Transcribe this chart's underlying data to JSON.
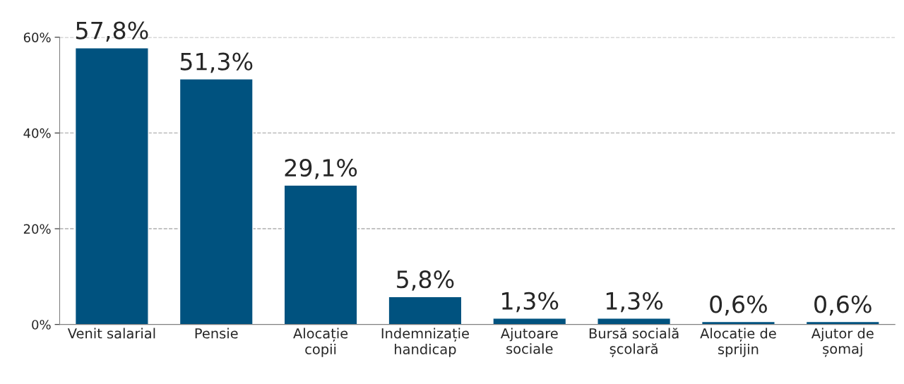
{
  "chart_data": {
    "type": "bar",
    "categories": [
      "Venit salarial",
      "Pensie",
      "Alocație\ncopii",
      "Indemnizație\nhandicap",
      "Ajutoare\nsociale",
      "Bursă socială\nșcolară",
      "Alocație de\nsprijin",
      "Ajutor de\nșomaj"
    ],
    "values": [
      57.8,
      51.3,
      29.1,
      5.8,
      1.3,
      1.3,
      0.6,
      0.6
    ],
    "value_labels": [
      "57,8%",
      "51,3%",
      "29,1%",
      "5,8%",
      "1,3%",
      "1,3%",
      "0,6%",
      "0,6%"
    ],
    "color": "#00527f",
    "ylim": [
      0,
      60
    ],
    "yticks": [
      {
        "value": 0,
        "label": "0%"
      },
      {
        "value": 20,
        "label": "20%"
      },
      {
        "value": 40,
        "label": "40%"
      },
      {
        "value": 60,
        "label": "60%"
      }
    ],
    "grid": "y",
    "line_style": "dashed"
  }
}
